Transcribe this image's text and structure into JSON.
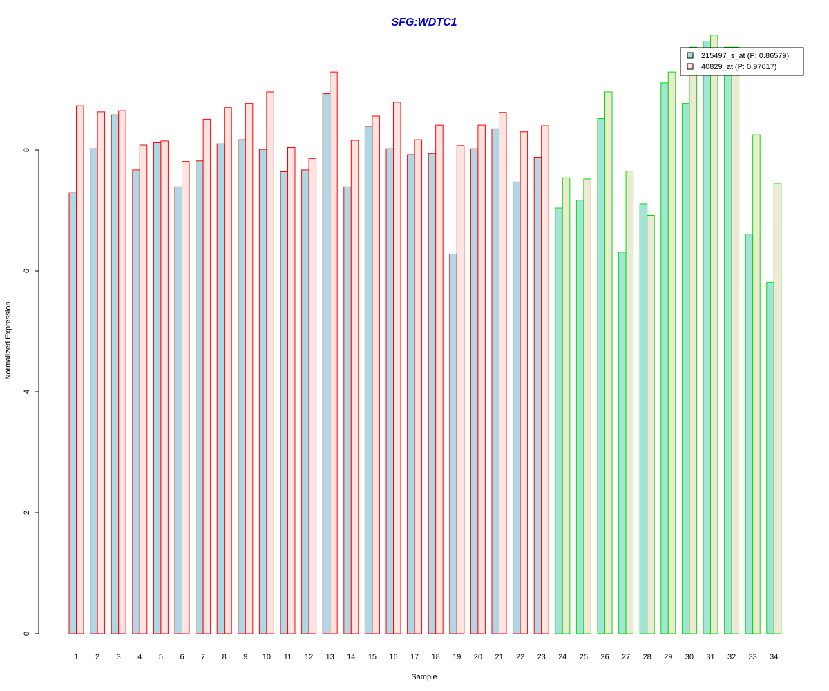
{
  "chart_data": {
    "type": "bar",
    "title": "SFG:WDTC1",
    "xlabel": "Sample",
    "ylabel": "Normalized Expression",
    "ylim": [
      0,
      10
    ],
    "yticks": [
      0,
      2,
      4,
      6,
      8
    ],
    "grid": false,
    "legend_position": "top-right",
    "categories": [
      "1",
      "2",
      "3",
      "4",
      "5",
      "6",
      "7",
      "8",
      "9",
      "10",
      "11",
      "12",
      "13",
      "14",
      "15",
      "16",
      "17",
      "18",
      "19",
      "20",
      "21",
      "22",
      "23",
      "24",
      "25",
      "26",
      "27",
      "28",
      "29",
      "30",
      "31",
      "32",
      "33",
      "34"
    ],
    "group_of_category": [
      "red",
      "red",
      "red",
      "red",
      "red",
      "red",
      "red",
      "red",
      "red",
      "red",
      "red",
      "red",
      "red",
      "red",
      "red",
      "red",
      "red",
      "red",
      "red",
      "red",
      "red",
      "red",
      "red",
      "green",
      "green",
      "green",
      "green",
      "green",
      "green",
      "green",
      "green",
      "green",
      "green",
      "green"
    ],
    "series": [
      {
        "name": "215497_s_at (P: 0.86579)",
        "values": [
          7.29,
          8.02,
          8.58,
          7.67,
          8.12,
          7.39,
          7.82,
          8.1,
          8.17,
          8.01,
          7.64,
          7.67,
          8.93,
          7.39,
          8.39,
          8.02,
          7.92,
          7.94,
          6.28,
          8.02,
          8.35,
          7.47,
          7.88,
          7.04,
          7.17,
          8.52,
          6.31,
          7.11,
          9.11,
          8.77,
          9.8,
          9.7,
          6.61,
          5.81
        ],
        "fill": {
          "red": "#add8e6",
          "green": "#a4e4d8"
        }
      },
      {
        "name": "40829_at (P: 0.97617)",
        "values": [
          8.73,
          8.63,
          8.65,
          8.08,
          8.15,
          7.81,
          8.51,
          8.7,
          8.77,
          8.96,
          8.04,
          7.86,
          9.29,
          8.16,
          8.56,
          8.79,
          8.17,
          8.41,
          8.07,
          8.41,
          8.62,
          8.3,
          8.4,
          7.54,
          7.52,
          8.96,
          7.65,
          6.92,
          9.29,
          9.7,
          9.9,
          9.7,
          8.25,
          7.44
        ],
        "fill": {
          "red": "#ffe4e1",
          "green": "#efe9d4"
        }
      }
    ],
    "edge_colors": {
      "red": "#ff0000",
      "green": "#00dd00"
    },
    "title_color": "#0000cc"
  }
}
